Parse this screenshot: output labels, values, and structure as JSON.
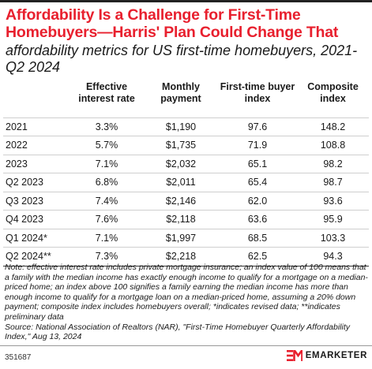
{
  "chart_data": {
    "type": "table",
    "title": "Affordability Is a Challenge for First-Time Homebuyers—Harris' Plan Could Change That",
    "subtitle": "affordability metrics for US first-time homebuyers, 2021-Q2 2024",
    "columns": [
      "Effective interest rate",
      "Monthly payment",
      "First-time buyer index",
      "Composite index"
    ],
    "rows": [
      {
        "label": "2021",
        "values": [
          "3.3%",
          "$1,190",
          "97.6",
          "148.2"
        ]
      },
      {
        "label": "2022",
        "values": [
          "5.7%",
          "$1,735",
          "71.9",
          "108.8"
        ]
      },
      {
        "label": "2023",
        "values": [
          "7.1%",
          "$2,032",
          "65.1",
          "98.2"
        ]
      },
      {
        "label": "Q2 2023",
        "values": [
          "6.8%",
          "$2,011",
          "65.4",
          "98.7"
        ]
      },
      {
        "label": "Q3 2023",
        "values": [
          "7.4%",
          "$2,146",
          "62.0",
          "93.6"
        ]
      },
      {
        "label": "Q4 2023",
        "values": [
          "7.6%",
          "$2,118",
          "63.6",
          "95.9"
        ]
      },
      {
        "label": "Q1 2024*",
        "values": [
          "7.1%",
          "$1,997",
          "68.5",
          "103.3"
        ]
      },
      {
        "label": "Q2 2024**",
        "values": [
          "7.3%",
          "$2,218",
          "62.5",
          "94.3"
        ]
      }
    ]
  },
  "footer": {
    "note": "Note: effective interest rate includes private mortgage insurance; an index value of 100 means that a family with the median income has exactly enough income to qualify for a mortgage on a median-priced home; an index above 100 signifies a family earning the median income has more than enough income to qualify for a mortgage loan on a median-priced home, assuming a 20% down payment; composite index includes homebuyers overall; *indicates revised data; **indicates preliminary data",
    "source": "Source: National Association of Realtors (NAR), \"First-Time Homebuyer Quarterly Affordability Index,\" Aug 13, 2024",
    "chart_id": "351687",
    "brand": "EMARKETER",
    "brand_color": "#e8202e"
  }
}
